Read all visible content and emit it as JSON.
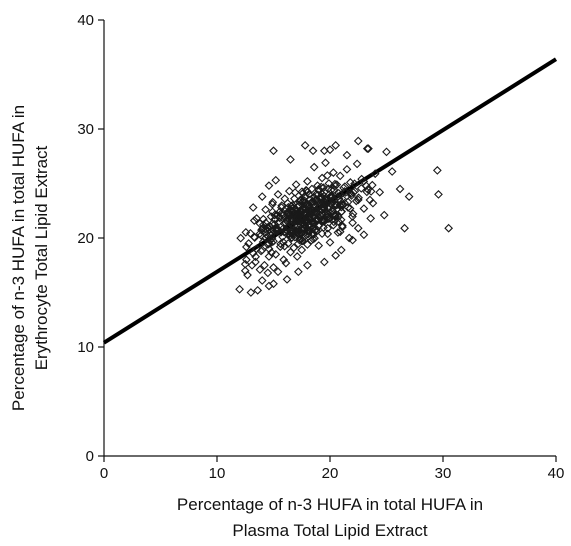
{
  "chart_data": {
    "type": "scatter",
    "title": "",
    "xlabel": "Percentage of n-3 HUFA in total HUFA in Plasma Total Lipid Extract",
    "xlabel_lines": [
      "Percentage of n-3 HUFA in total HUFA in",
      "Plasma Total Lipid Extract"
    ],
    "ylabel": "Percentage of n-3 HUFA in total HUFA in Erythrocyte Total Lipid Extract",
    "ylabel_lines": [
      "Percentage of n-3 HUFA in total HUFA in",
      "Erythrocyte Total Lipid Extract"
    ],
    "xlim": [
      0,
      40
    ],
    "ylim": [
      0,
      40
    ],
    "xticks": [
      0,
      10,
      20,
      30,
      40
    ],
    "yticks": [
      0,
      10,
      20,
      30,
      40
    ],
    "grid": false,
    "legend": "none",
    "marker": "open-diamond",
    "marker_color": "#1a1a1a",
    "fit_line": {
      "slope": 0.65,
      "intercept": 10.4,
      "x_range": [
        0,
        40
      ]
    },
    "points": [
      [
        12.0,
        15.3
      ],
      [
        12.5,
        17.0
      ],
      [
        12.5,
        17.6
      ],
      [
        12.6,
        18.0
      ],
      [
        12.7,
        16.6
      ],
      [
        13.0,
        15.0
      ],
      [
        13.1,
        17.5
      ],
      [
        13.2,
        18.6
      ],
      [
        13.3,
        20.1
      ],
      [
        13.3,
        21.6
      ],
      [
        13.4,
        17.8
      ],
      [
        13.5,
        19.0
      ],
      [
        13.6,
        15.2
      ],
      [
        13.8,
        17.1
      ],
      [
        13.8,
        20.4
      ],
      [
        14.0,
        16.1
      ],
      [
        14.0,
        18.9
      ],
      [
        14.1,
        21.2
      ],
      [
        14.2,
        17.5
      ],
      [
        14.3,
        20.0
      ],
      [
        14.3,
        22.6
      ],
      [
        14.5,
        16.8
      ],
      [
        14.5,
        19.4
      ],
      [
        14.6,
        24.8
      ],
      [
        14.6,
        18.3
      ],
      [
        14.7,
        21.0
      ],
      [
        14.8,
        20.3
      ],
      [
        14.9,
        23.1
      ],
      [
        15.0,
        17.3
      ],
      [
        15.0,
        19.7
      ],
      [
        15.1,
        22.1
      ],
      [
        15.2,
        18.5
      ],
      [
        15.3,
        20.6
      ],
      [
        15.4,
        24.0
      ],
      [
        15.4,
        16.9
      ],
      [
        15.5,
        21.5
      ],
      [
        15.6,
        19.2
      ],
      [
        15.7,
        22.8
      ],
      [
        15.8,
        20.1
      ],
      [
        15.9,
        18.0
      ],
      [
        16.0,
        21.9
      ],
      [
        16.0,
        23.6
      ],
      [
        16.1,
        17.7
      ],
      [
        16.2,
        20.7
      ],
      [
        16.3,
        19.5
      ],
      [
        16.3,
        22.3
      ],
      [
        16.4,
        24.3
      ],
      [
        16.5,
        18.7
      ],
      [
        16.6,
        21.2
      ],
      [
        16.6,
        20.0
      ],
      [
        16.7,
        23.0
      ],
      [
        16.8,
        19.1
      ],
      [
        16.9,
        22.0
      ],
      [
        17.0,
        20.5
      ],
      [
        17.0,
        24.9
      ],
      [
        17.1,
        18.3
      ],
      [
        17.2,
        21.6
      ],
      [
        17.3,
        23.3
      ],
      [
        17.3,
        19.8
      ],
      [
        17.4,
        22.5
      ],
      [
        17.5,
        20.9
      ],
      [
        17.5,
        18.9
      ],
      [
        17.6,
        24.1
      ],
      [
        17.7,
        21.3
      ],
      [
        17.8,
        23.8
      ],
      [
        17.8,
        20.2
      ],
      [
        17.9,
        22.7
      ],
      [
        18.0,
        19.4
      ],
      [
        18.0,
        25.2
      ],
      [
        18.1,
        21.8
      ],
      [
        18.2,
        23.5
      ],
      [
        18.2,
        20.6
      ],
      [
        18.3,
        22.2
      ],
      [
        18.4,
        24.5
      ],
      [
        18.5,
        19.9
      ],
      [
        18.5,
        21.4
      ],
      [
        18.6,
        26.5
      ],
      [
        18.7,
        23.0
      ],
      [
        18.8,
        20.8
      ],
      [
        18.8,
        22.6
      ],
      [
        18.9,
        24.8
      ],
      [
        19.0,
        21.1
      ],
      [
        19.0,
        19.3
      ],
      [
        19.1,
        23.7
      ],
      [
        19.2,
        22.0
      ],
      [
        19.3,
        25.5
      ],
      [
        19.3,
        20.4
      ],
      [
        19.4,
        22.9
      ],
      [
        19.5,
        24.2
      ],
      [
        19.5,
        21.6
      ],
      [
        19.6,
        26.9
      ],
      [
        19.7,
        23.4
      ],
      [
        19.8,
        20.9
      ],
      [
        19.9,
        25.0
      ],
      [
        20.0,
        22.3
      ],
      [
        20.0,
        19.6
      ],
      [
        20.1,
        24.4
      ],
      [
        20.2,
        21.7
      ],
      [
        20.3,
        26.0
      ],
      [
        20.4,
        23.1
      ],
      [
        20.5,
        22.0
      ],
      [
        20.6,
        24.9
      ],
      [
        20.7,
        20.5
      ],
      [
        20.8,
        23.6
      ],
      [
        20.9,
        25.7
      ],
      [
        21.0,
        22.4
      ],
      [
        21.1,
        21.0
      ],
      [
        21.2,
        24.6
      ],
      [
        21.3,
        23.2
      ],
      [
        21.5,
        26.3
      ],
      [
        21.6,
        22.8
      ],
      [
        21.8,
        25.1
      ],
      [
        21.9,
        23.9
      ],
      [
        22.0,
        21.4
      ],
      [
        22.2,
        24.3
      ],
      [
        22.4,
        26.8
      ],
      [
        22.5,
        23.5
      ],
      [
        22.8,
        25.4
      ],
      [
        23.0,
        22.7
      ],
      [
        23.2,
        24.8
      ],
      [
        23.4,
        28.2
      ],
      [
        23.6,
        21.8
      ],
      [
        23.8,
        23.2
      ],
      [
        24.0,
        25.9
      ],
      [
        24.4,
        24.2
      ],
      [
        24.8,
        22.1
      ],
      [
        25.0,
        27.9
      ],
      [
        25.5,
        26.1
      ],
      [
        26.2,
        24.5
      ],
      [
        26.6,
        20.9
      ],
      [
        27.0,
        23.8
      ],
      [
        29.5,
        26.2
      ],
      [
        30.5,
        20.9
      ],
      [
        29.6,
        24.0
      ],
      [
        15.0,
        28.0
      ],
      [
        16.5,
        27.2
      ],
      [
        17.8,
        28.5
      ],
      [
        19.5,
        28.0
      ],
      [
        20.5,
        28.5
      ],
      [
        21.5,
        27.6
      ],
      [
        22.5,
        28.9
      ],
      [
        23.3,
        28.2
      ],
      [
        12.8,
        19.5
      ],
      [
        13.2,
        22.8
      ],
      [
        14.0,
        23.8
      ],
      [
        15.2,
        25.3
      ],
      [
        17.2,
        16.9
      ],
      [
        18.0,
        17.5
      ],
      [
        19.5,
        17.8
      ],
      [
        20.5,
        18.4
      ],
      [
        21.0,
        18.9
      ],
      [
        22.0,
        19.8
      ],
      [
        16.2,
        16.2
      ],
      [
        15.0,
        15.8
      ],
      [
        14.6,
        15.6
      ],
      [
        21.7,
        20.0
      ],
      [
        22.5,
        20.9
      ],
      [
        23.0,
        20.3
      ],
      [
        20.0,
        28.1
      ],
      [
        18.5,
        28.0
      ]
    ],
    "dense_cloud": {
      "x_center": 17.8,
      "y_center": 21.9,
      "x_sd": 2.2,
      "y_sd": 1.8,
      "count": 320,
      "seed": 42
    }
  }
}
